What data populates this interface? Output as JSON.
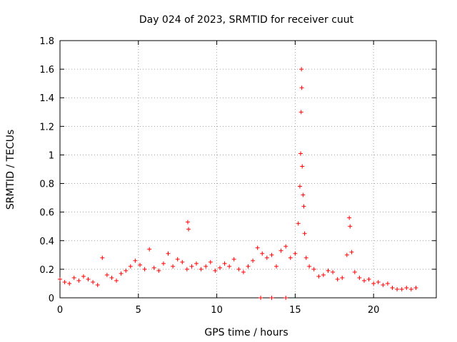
{
  "chart_data": {
    "type": "scatter",
    "title": "Day 024 of 2023, SRMTID for receiver cuut",
    "xlabel": "GPS time / hours",
    "ylabel": "SRMTID / TECUs",
    "xlim": [
      0,
      24
    ],
    "ylim": [
      0,
      1.8
    ],
    "x_ticks": [
      0,
      5,
      10,
      15,
      20
    ],
    "x_tick_labels": [
      "0",
      "5",
      "10",
      "15",
      "20"
    ],
    "y_ticks": [
      0,
      0.2,
      0.4,
      0.6,
      0.8,
      1.0,
      1.2,
      1.4,
      1.6,
      1.8
    ],
    "y_tick_labels": [
      "0",
      "0.2",
      "0.4",
      "0.6",
      "0.8",
      "1",
      "1.2",
      "1.4",
      "1.6",
      "1.8"
    ],
    "grid": true,
    "marker": "plus",
    "color": "#ff0000",
    "series": [
      {
        "name": "SRMTID",
        "x": [
          0.0,
          0.3,
          0.6,
          0.9,
          1.2,
          1.5,
          1.8,
          2.1,
          2.4,
          2.7,
          3.0,
          3.3,
          3.6,
          3.9,
          4.2,
          4.5,
          4.8,
          5.1,
          5.4,
          5.7,
          6.0,
          6.3,
          6.6,
          6.9,
          7.2,
          7.5,
          7.8,
          8.1,
          8.15,
          8.2,
          8.4,
          8.7,
          9.0,
          9.3,
          9.6,
          9.9,
          10.2,
          10.5,
          10.8,
          11.1,
          11.4,
          11.7,
          12.0,
          12.3,
          12.6,
          12.9,
          13.2,
          13.5,
          13.8,
          14.1,
          14.4,
          14.7,
          15.0,
          15.2,
          15.3,
          15.35,
          15.38,
          15.4,
          15.42,
          15.45,
          15.5,
          15.55,
          15.6,
          15.7,
          15.9,
          16.2,
          16.5,
          16.8,
          17.1,
          17.4,
          17.7,
          18.0,
          18.3,
          18.45,
          18.5,
          18.6,
          18.8,
          19.1,
          19.4,
          19.7,
          20.0,
          20.3,
          20.6,
          20.9,
          21.2,
          21.5,
          21.8,
          22.1,
          22.4,
          22.7,
          12.8,
          13.5,
          14.4
        ],
        "y": [
          0.13,
          0.11,
          0.1,
          0.14,
          0.12,
          0.15,
          0.13,
          0.11,
          0.09,
          0.28,
          0.16,
          0.14,
          0.12,
          0.17,
          0.19,
          0.22,
          0.26,
          0.23,
          0.2,
          0.34,
          0.21,
          0.19,
          0.24,
          0.31,
          0.22,
          0.27,
          0.25,
          0.2,
          0.53,
          0.48,
          0.22,
          0.24,
          0.2,
          0.22,
          0.25,
          0.19,
          0.21,
          0.24,
          0.22,
          0.27,
          0.2,
          0.18,
          0.22,
          0.26,
          0.35,
          0.31,
          0.28,
          0.3,
          0.22,
          0.33,
          0.36,
          0.28,
          0.31,
          0.52,
          0.78,
          1.01,
          1.3,
          1.6,
          1.47,
          0.92,
          0.72,
          0.64,
          0.45,
          0.28,
          0.22,
          0.2,
          0.15,
          0.16,
          0.19,
          0.18,
          0.13,
          0.14,
          0.3,
          0.56,
          0.5,
          0.32,
          0.18,
          0.14,
          0.12,
          0.13,
          0.1,
          0.11,
          0.09,
          0.1,
          0.07,
          0.06,
          0.06,
          0.07,
          0.06,
          0.07,
          0.0,
          0.0,
          0.0
        ]
      }
    ]
  }
}
